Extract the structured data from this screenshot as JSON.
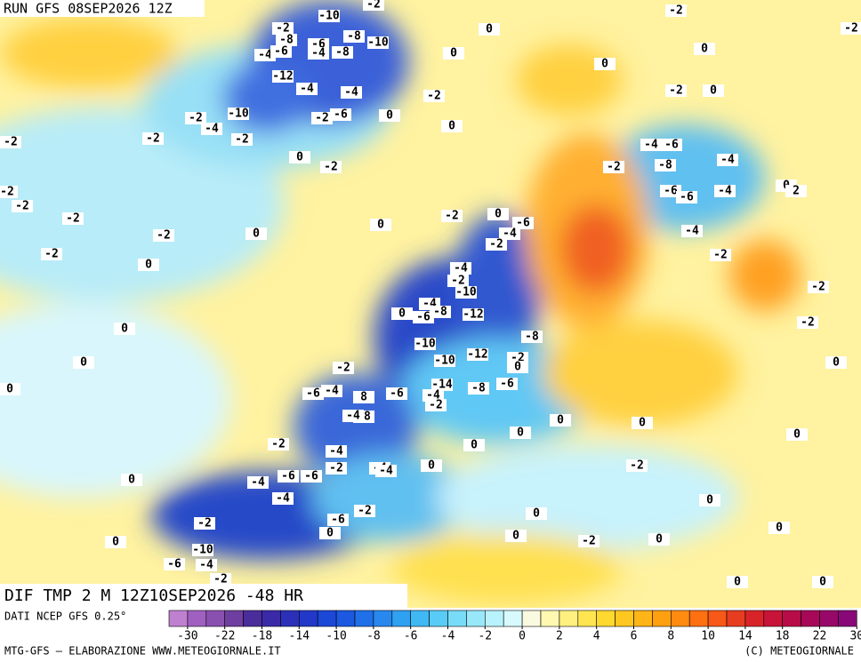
{
  "header": {
    "run": "RUN GFS 08SEP2026 12Z"
  },
  "map": {
    "title": "DIF TMP 2 M 12Z10SEP2026 -48 HR",
    "contour_labels": [
      -10,
      -2,
      -2,
      -8,
      -6,
      -8,
      -10,
      -4,
      -6,
      -4,
      -8,
      0,
      0,
      -2,
      -2,
      0,
      0,
      -12,
      -4,
      -4,
      -2,
      -2,
      0,
      -2,
      -10,
      -4,
      -2,
      -6,
      0,
      -2,
      -2,
      0,
      -2,
      -4,
      -6,
      0,
      -2,
      -2,
      -8,
      -4,
      -2,
      -2,
      -6,
      -6,
      -4,
      0,
      2,
      -2,
      -2,
      0,
      -6,
      -4,
      -2,
      0,
      -2,
      0,
      -4,
      -2,
      -2,
      0,
      -4,
      -2,
      -10,
      -4,
      -8,
      -12,
      -6,
      0,
      -2,
      0,
      -2,
      -8,
      -10,
      -12,
      -10,
      -2,
      0,
      -2,
      0,
      0,
      -6,
      -4,
      0,
      -6,
      -14,
      -8,
      -6,
      -4,
      -2,
      8,
      -8,
      -4,
      0,
      0,
      0,
      0,
      -2,
      0,
      -4,
      -2,
      -4,
      -4,
      0,
      -2,
      -6,
      -6,
      -4,
      0,
      -4,
      -2,
      -6,
      0,
      0,
      0,
      -2,
      0,
      -2,
      0,
      0,
      0,
      -10,
      -6,
      -4,
      0,
      0,
      -2
    ]
  },
  "legend": {
    "source": "DATI NCEP GFS 0.25°",
    "colors": [
      "#c080d0",
      "#a060c0",
      "#8a50b0",
      "#6e3fa0",
      "#4a2c9a",
      "#3a2aa8",
      "#2c30b8",
      "#2238c8",
      "#1c48d8",
      "#1c58e0",
      "#2070e8",
      "#2888ee",
      "#30a0f0",
      "#40b8f4",
      "#58ccf6",
      "#78dcf8",
      "#98e8fa",
      "#b8f2fc",
      "#d8fafe",
      "#fafae0",
      "#fff8b0",
      "#fff080",
      "#ffe650",
      "#ffd830",
      "#ffc820",
      "#ffb418",
      "#ffa010",
      "#ff8c10",
      "#ff7010",
      "#f85818",
      "#e83c20",
      "#d82428",
      "#c81438",
      "#b80c48",
      "#a80858",
      "#980868",
      "#880878"
    ],
    "ticks": [
      -30,
      -22,
      -18,
      -14,
      -10,
      -8,
      -6,
      -4,
      -2,
      0,
      2,
      4,
      6,
      8,
      10,
      14,
      18,
      22,
      30
    ]
  },
  "footer": {
    "credit": "MTG-GFS — ELABORAZIONE WWW.METEOGIORNALE.IT",
    "copyright": "(C) METEOGIORNALE"
  }
}
